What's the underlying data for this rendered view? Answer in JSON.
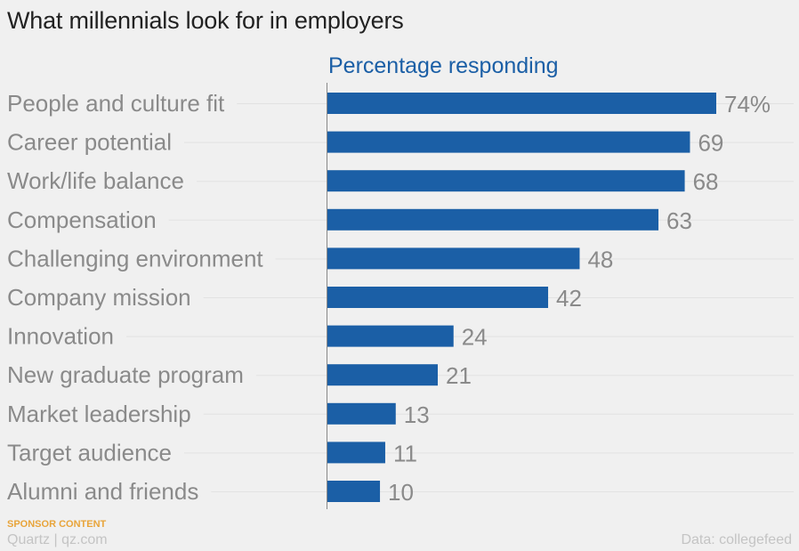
{
  "title": "What millennials look for in employers",
  "footer": {
    "sponsor": "SPONSOR CONTENT",
    "brand": "Quartz | qz.com",
    "source": "Data: collegefeed"
  },
  "colors": {
    "bar": "#1b5fa6",
    "series_label": "#1b5fa6",
    "category_label": "#8a8a8a",
    "value_label": "#8a8a8a",
    "gridline": "#e2e2e2",
    "axis": "#888888",
    "background": "#f0f0f0"
  },
  "chart_data": {
    "type": "bar",
    "orientation": "horizontal",
    "title": "What millennials look for in employers",
    "xlim": [
      0,
      74
    ],
    "grid": true,
    "legend": "none",
    "categories": [
      "People and culture fit",
      "Career potential",
      "Work/life balance",
      "Compensation",
      "Challenging environment",
      "Company mission",
      "Innovation",
      "New graduate program",
      "Market leadership",
      "Target audience",
      "Alumni and friends"
    ],
    "series": [
      {
        "name": "Percentage responding",
        "values": [
          74,
          69,
          68,
          63,
          48,
          42,
          24,
          21,
          13,
          11,
          10
        ],
        "labels": [
          "74%",
          "69",
          "68",
          "63",
          "48",
          "42",
          "24",
          "21",
          "13",
          "11",
          "10"
        ]
      }
    ]
  }
}
